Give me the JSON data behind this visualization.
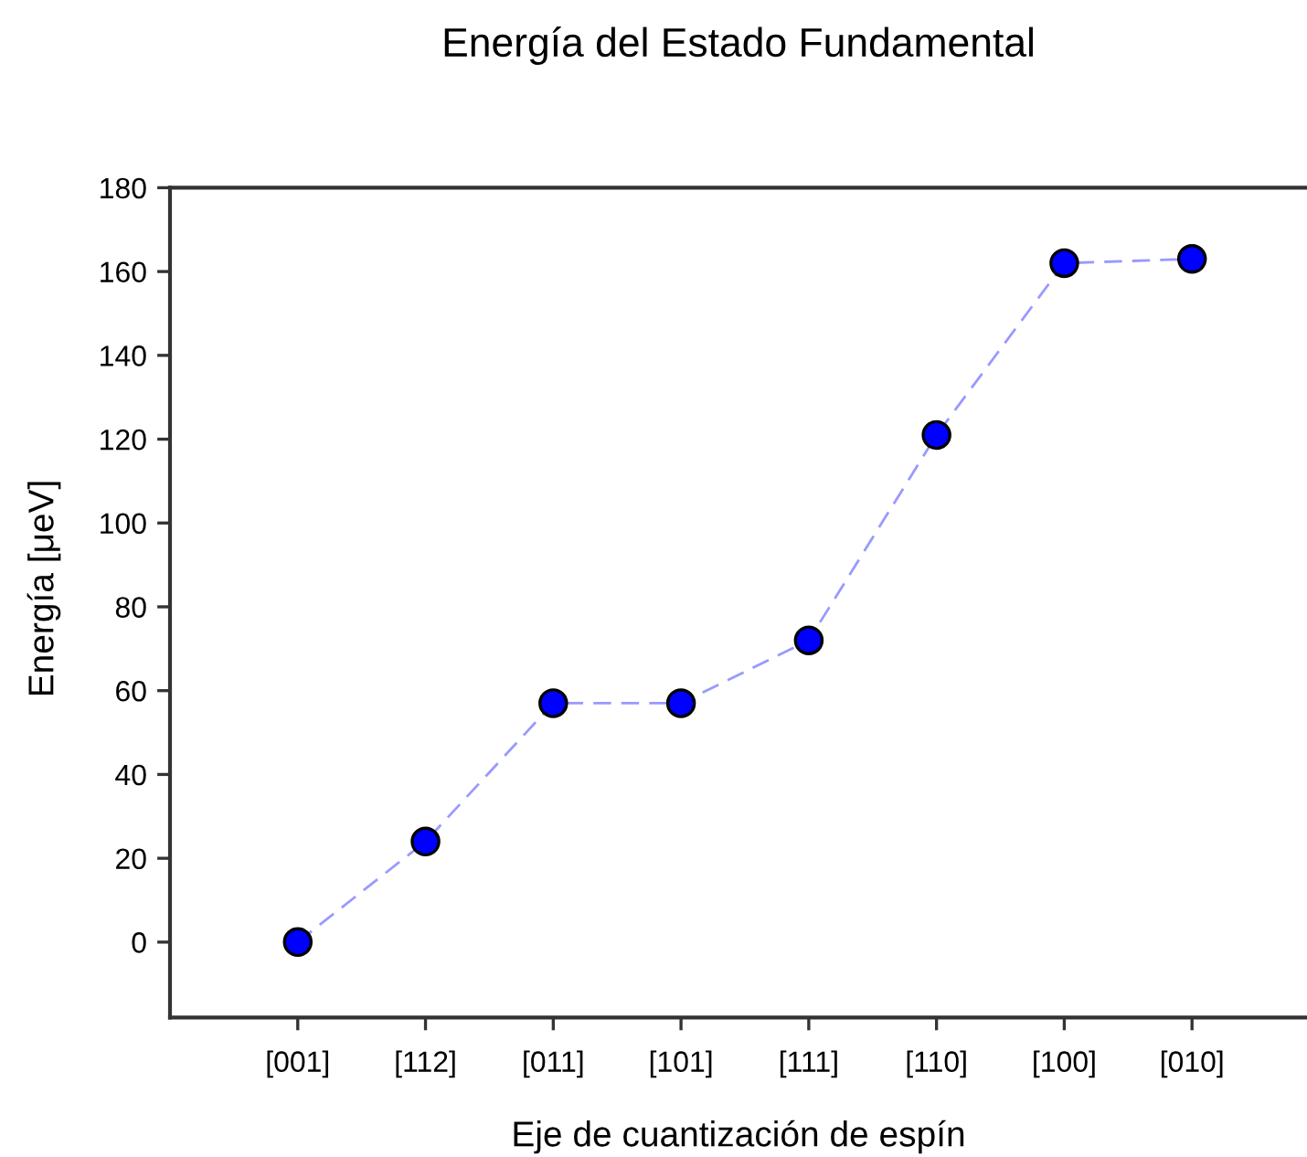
{
  "chart_data": {
    "type": "line",
    "title": "Energía del Estado Fundamental",
    "xlabel": "Eje de cuantización de espín",
    "ylabel": "Energía [μeV]",
    "categories": [
      "[001]",
      "[112]",
      "[011]",
      "[101]",
      "[111]",
      "[110]",
      "[100]",
      "[010]"
    ],
    "series": [
      {
        "color": "#0000ff",
        "values": [
          0,
          24,
          57,
          57,
          72,
          121,
          162,
          163
        ]
      }
    ],
    "marker": "circle",
    "line_style": "dashed",
    "ylim": [
      -18,
      180
    ],
    "yticks": [
      0,
      20,
      40,
      60,
      80,
      100,
      120,
      140,
      160,
      180
    ],
    "grid": false
  }
}
